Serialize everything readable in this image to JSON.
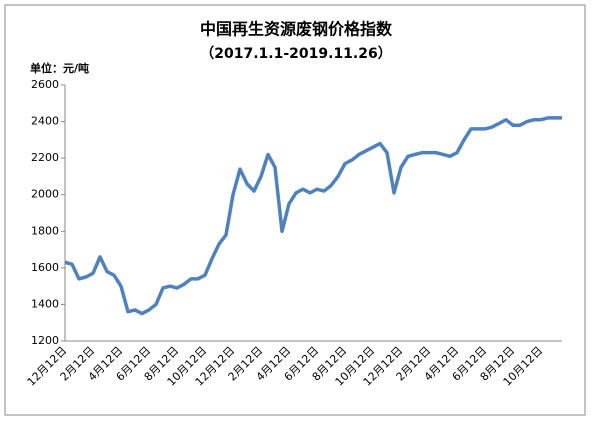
{
  "chart_data": {
    "type": "line",
    "title": "中国再生资源废钢价格指数",
    "subtitle": "（2017.1.1-2019.11.26）",
    "y_unit": "单位：元/吨",
    "categories": [
      "12月12日",
      null,
      null,
      null,
      "2月12日",
      null,
      null,
      null,
      "4月12日",
      null,
      null,
      null,
      "6月12日",
      null,
      null,
      null,
      "8月12日",
      null,
      null,
      null,
      "10月12日",
      null,
      null,
      null,
      "12月12日",
      null,
      null,
      null,
      "2月12日",
      null,
      null,
      null,
      "4月12日",
      null,
      null,
      null,
      "6月12日",
      null,
      null,
      null,
      "8月12日",
      null,
      null,
      null,
      "10月12日",
      null,
      null,
      null,
      "12月12日",
      null,
      null,
      null,
      "2月12日",
      null,
      null,
      null,
      "4月12日",
      null,
      null,
      null,
      "6月12日",
      null,
      null,
      null,
      "8月12日",
      null,
      null,
      null,
      "10月12日",
      null,
      null,
      null
    ],
    "series": [
      {
        "color": "#4f81bd",
        "values": [
          1630,
          1620,
          1540,
          1550,
          1570,
          1660,
          1580,
          1560,
          1500,
          1360,
          1370,
          1350,
          1370,
          1400,
          1490,
          1500,
          1490,
          1510,
          1540,
          1540,
          1560,
          1650,
          1730,
          1780,
          2000,
          2140,
          2060,
          2020,
          2100,
          2220,
          2150,
          1800,
          1950,
          2010,
          2030,
          2010,
          2030,
          2020,
          2050,
          2100,
          2170,
          2190,
          2220,
          2240,
          2260,
          2280,
          2230,
          2010,
          2150,
          2210,
          2220,
          2230,
          2230,
          2230,
          2220,
          2210,
          2230,
          2300,
          2360,
          2360,
          2360,
          2370,
          2390,
          2410,
          2380,
          2380,
          2400,
          2410,
          2410,
          2420,
          2420,
          2420
        ]
      }
    ],
    "ylim": [
      1200,
      2600
    ],
    "yticks": [
      1200,
      1400,
      1600,
      1800,
      2000,
      2200,
      2400,
      2600
    ],
    "grid": false
  }
}
